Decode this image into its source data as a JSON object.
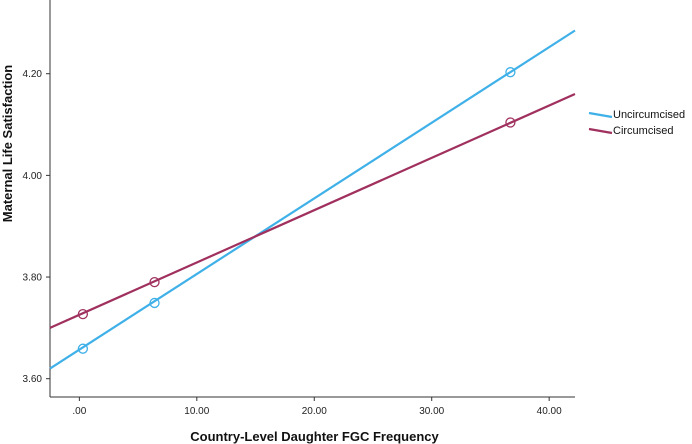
{
  "chart_data": {
    "type": "line",
    "title": "",
    "xlabel": "Country-Level Daughter FGC Frequency",
    "ylabel": "Maternal Life Satisfaction",
    "xlim": [
      -2.5,
      42.2
    ],
    "ylim": [
      3.564,
      4.345
    ],
    "x_ticks": [
      0,
      10,
      20,
      30,
      40
    ],
    "x_tick_labels": [
      ".00",
      "10.00",
      "20.00",
      "30.00",
      "40.00"
    ],
    "y_ticks": [
      3.6,
      3.8,
      4.0,
      4.2
    ],
    "y_tick_labels": [
      "3.60",
      "3.80",
      "4.00",
      "4.20"
    ],
    "grid": false,
    "legend_position": "right",
    "series": [
      {
        "name": "Uncircumcised",
        "color": "#3fb0e8",
        "line": [
          [
            -2.5,
            3.62
          ],
          [
            42.2,
            4.285
          ]
        ],
        "points": [
          [
            0.3,
            3.659
          ],
          [
            6.4,
            3.749
          ],
          [
            36.7,
            4.203
          ]
        ]
      },
      {
        "name": "Circumcised",
        "color": "#a0305e",
        "line": [
          [
            -2.5,
            3.7
          ],
          [
            42.2,
            4.16
          ]
        ],
        "points": [
          [
            0.3,
            3.727
          ],
          [
            6.4,
            3.79
          ],
          [
            36.7,
            4.104
          ]
        ]
      }
    ]
  }
}
